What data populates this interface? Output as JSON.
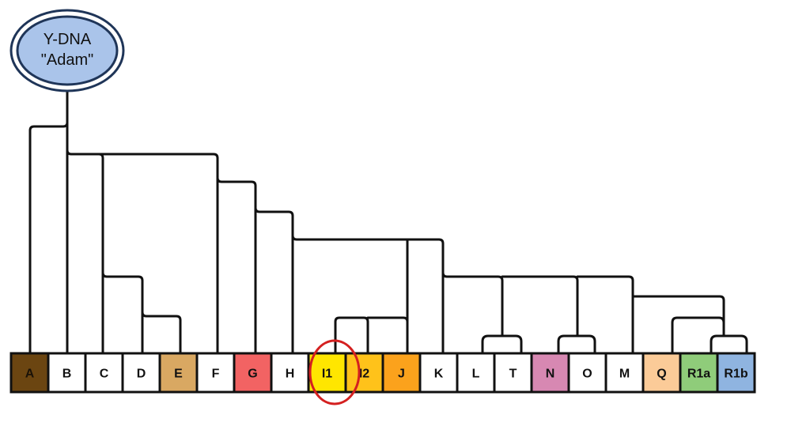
{
  "root": {
    "line1": "Y-DNA",
    "line2": "\"Adam\""
  },
  "haplogroups": [
    {
      "id": "a",
      "label": "A",
      "color": "#6b4511",
      "text_color": "#1a1208"
    },
    {
      "id": "b",
      "label": "B",
      "color": "#ffffff",
      "text_color": "#111111"
    },
    {
      "id": "c",
      "label": "C",
      "color": "#ffffff",
      "text_color": "#111111"
    },
    {
      "id": "d",
      "label": "D",
      "color": "#ffffff",
      "text_color": "#111111"
    },
    {
      "id": "e",
      "label": "E",
      "color": "#d9a862",
      "text_color": "#111111"
    },
    {
      "id": "f",
      "label": "F",
      "color": "#ffffff",
      "text_color": "#111111"
    },
    {
      "id": "g",
      "label": "G",
      "color": "#f26363",
      "text_color": "#111111"
    },
    {
      "id": "h",
      "label": "H",
      "color": "#ffffff",
      "text_color": "#111111"
    },
    {
      "id": "i1",
      "label": "I1",
      "color": "#ffe600",
      "text_color": "#111111"
    },
    {
      "id": "i2",
      "label": "I2",
      "color": "#ffc21a",
      "text_color": "#111111"
    },
    {
      "id": "j",
      "label": "J",
      "color": "#fba21c",
      "text_color": "#111111"
    },
    {
      "id": "k",
      "label": "K",
      "color": "#ffffff",
      "text_color": "#111111"
    },
    {
      "id": "l",
      "label": "L",
      "color": "#ffffff",
      "text_color": "#111111"
    },
    {
      "id": "t",
      "label": "T",
      "color": "#ffffff",
      "text_color": "#111111"
    },
    {
      "id": "n",
      "label": "N",
      "color": "#d788b2",
      "text_color": "#111111"
    },
    {
      "id": "o",
      "label": "O",
      "color": "#ffffff",
      "text_color": "#111111"
    },
    {
      "id": "m",
      "label": "M",
      "color": "#ffffff",
      "text_color": "#111111"
    },
    {
      "id": "q",
      "label": "Q",
      "color": "#fbcb98",
      "text_color": "#111111"
    },
    {
      "id": "r1a",
      "label": "R1a",
      "color": "#8fcc7a",
      "text_color": "#111111"
    },
    {
      "id": "r1b",
      "label": "R1b",
      "color": "#8fb4e0",
      "text_color": "#111111"
    }
  ],
  "highlighted": "I1",
  "colors": {
    "line": "#111111",
    "highlight_ring": "#d42020",
    "root_fill": "#aac4ea",
    "root_stroke": "#1f3558"
  }
}
